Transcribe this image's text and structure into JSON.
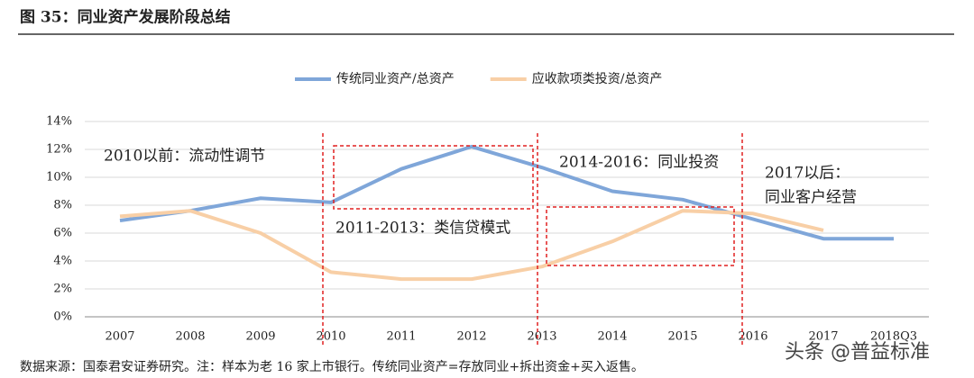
{
  "chart_data": {
    "type": "line",
    "title": "图 35：同业资产发展阶段总结",
    "categories": [
      "2007",
      "2008",
      "2009",
      "2010",
      "2011",
      "2012",
      "2013",
      "2014",
      "2015",
      "2016",
      "2017",
      "2018Q3"
    ],
    "series": [
      {
        "name": "传统同业资产/总资产",
        "color": "#7fa6d9",
        "values": [
          6.9,
          7.6,
          8.5,
          8.2,
          10.6,
          12.2,
          10.7,
          9.0,
          8.4,
          7.0,
          5.6,
          5.6
        ]
      },
      {
        "name": "应收款项类投资/总资产",
        "color": "#f8cfa6",
        "values": [
          7.2,
          7.6,
          6.0,
          3.2,
          2.7,
          2.7,
          3.6,
          5.4,
          7.6,
          7.4,
          6.2,
          null
        ]
      }
    ],
    "ylim": [
      0,
      14
    ],
    "yticks": [
      {
        "value": 0,
        "label": "0%"
      },
      {
        "value": 2,
        "label": "2%"
      },
      {
        "value": 4,
        "label": "4%"
      },
      {
        "value": 6,
        "label": "6%"
      },
      {
        "value": 8,
        "label": "8%"
      },
      {
        "value": 10,
        "label": "10%"
      },
      {
        "value": 12,
        "label": "12%"
      },
      {
        "value": 14,
        "label": "14%"
      }
    ],
    "grid": true,
    "legend": "top",
    "annotations": [
      "2010以前：流动性调节",
      "2011-2013：类信贷模式",
      "2014-2016：同业投资",
      "2017以后：",
      "同业客户经营"
    ],
    "source": "数据来源：国泰君安证券研究。注：样本为老 16 家上市银行。传统同业资产=存放同业+拆出资金+买入返售。",
    "watermark": "头条 @普益标准"
  }
}
